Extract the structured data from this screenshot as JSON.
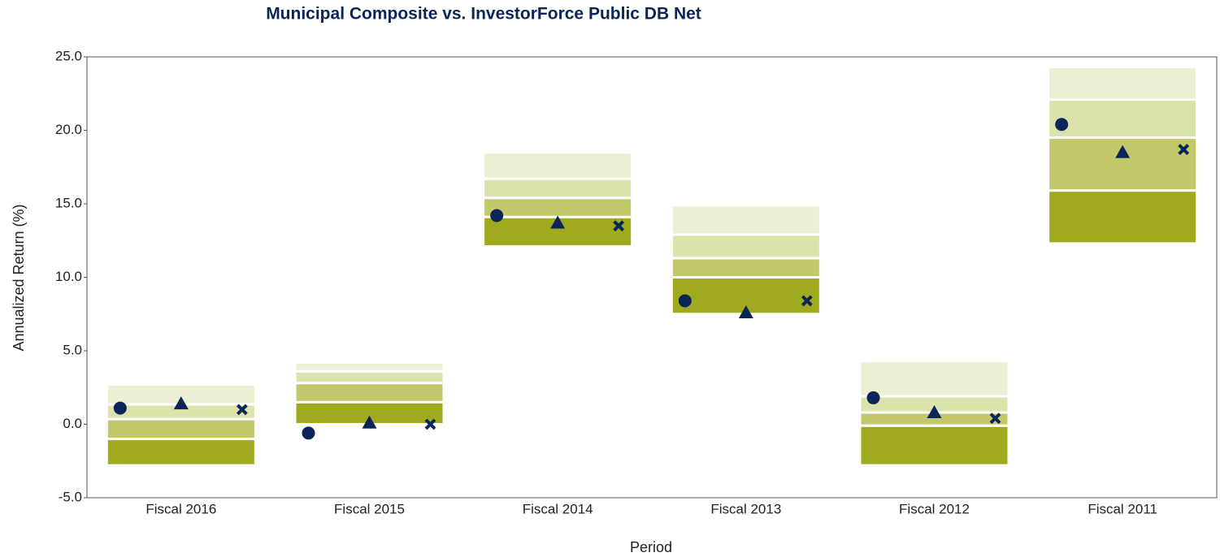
{
  "chart_data": {
    "type": "floating-range",
    "title": "Municipal Composite vs. InvestorForce Public DB Net",
    "x_label": "Period",
    "y_label": "Annualized Return (%)",
    "categories": [
      "Fiscal 2016",
      "Fiscal 2015",
      "Fiscal 2014",
      "Fiscal 2013",
      "Fiscal 2012",
      "Fiscal 2011"
    ],
    "boundaries": [
      [
        2.7,
        1.35,
        0.35,
        -1.0,
        -2.8
      ],
      [
        4.2,
        3.6,
        2.8,
        1.5,
        0.0
      ],
      [
        18.5,
        16.7,
        15.4,
        14.1,
        12.1
      ],
      [
        14.9,
        12.9,
        11.3,
        10.0,
        7.5
      ],
      [
        4.3,
        1.9,
        0.8,
        -0.1,
        -2.8
      ],
      [
        24.3,
        22.1,
        19.5,
        15.9,
        12.3
      ]
    ],
    "band_colors": [
      "#ebefd3",
      "#dce2ab",
      "#c3c96a",
      "#a0aa1e"
    ],
    "series": [
      {
        "marker": "circle",
        "color": "#0b2559",
        "values": [
          1.1,
          -0.6,
          14.2,
          8.4,
          1.8,
          20.4
        ]
      },
      {
        "marker": "triangle",
        "color": "#0b2559",
        "values": [
          1.4,
          0.1,
          13.7,
          7.6,
          0.8,
          18.5
        ]
      },
      {
        "marker": "cross",
        "color": "#0b2559",
        "values": [
          1.0,
          0.0,
          13.5,
          8.4,
          0.4,
          18.7
        ]
      }
    ],
    "ylim": [
      -5,
      25
    ],
    "yticks": [
      {
        "value": -5,
        "label": "-5.0"
      },
      {
        "value": 0,
        "label": "0.0"
      },
      {
        "value": 5,
        "label": "5.0"
      },
      {
        "value": 10,
        "label": "10.0"
      },
      {
        "value": 15,
        "label": "15.0"
      },
      {
        "value": 20,
        "label": "20.0"
      },
      {
        "value": 25,
        "label": "25.0"
      }
    ]
  }
}
